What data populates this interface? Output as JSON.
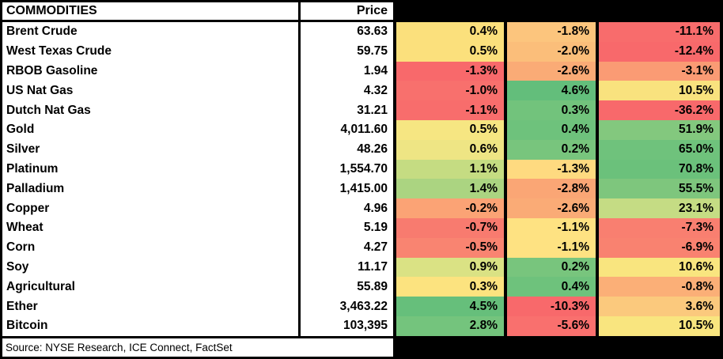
{
  "table": {
    "title": "COMMODITIES",
    "price_header": "Price",
    "pct_headers": [
      "",
      "",
      ""
    ],
    "source": "Source: NYSE Research, ICE Connect, FactSet",
    "heatmap_palette": {
      "low_red": "#F8696B",
      "mid_yellow": "#FFEB84",
      "high_green": "#63BE7B"
    },
    "rows": [
      {
        "name": "Brent Crude",
        "price": "63.63",
        "pct": [
          "0.4%",
          "-1.8%",
          "-11.1%"
        ],
        "colors": [
          "#FBE07C",
          "#FCC57D",
          "#F86C6C"
        ]
      },
      {
        "name": "West Texas Crude",
        "price": "59.75",
        "pct": [
          "0.5%",
          "-2.0%",
          "-12.4%"
        ],
        "colors": [
          "#FBE07C",
          "#FBBE7A",
          "#F8696B"
        ]
      },
      {
        "name": "RBOB Gasoline",
        "price": "1.94",
        "pct": [
          "-1.3%",
          "-2.6%",
          "-3.1%"
        ],
        "colors": [
          "#F8696B",
          "#FAAB76",
          "#FA9B74"
        ]
      },
      {
        "name": "US Nat Gas",
        "price": "4.32",
        "pct": [
          "-1.0%",
          "4.6%",
          "10.5%"
        ],
        "colors": [
          "#F8706D",
          "#63BE7B",
          "#F9E27E"
        ]
      },
      {
        "name": "Dutch Nat Gas",
        "price": "31.21",
        "pct": [
          "-1.1%",
          "0.3%",
          "-36.2%"
        ],
        "colors": [
          "#F86D6C",
          "#72C37C",
          "#F8696B"
        ]
      },
      {
        "name": "Gold",
        "price": "4,011.60",
        "pct": [
          "0.5%",
          "0.4%",
          "51.9%"
        ],
        "colors": [
          "#F6E682",
          "#6EC27C",
          "#83C87E"
        ]
      },
      {
        "name": "Silver",
        "price": "48.26",
        "pct": [
          "0.6%",
          "0.2%",
          "65.0%"
        ],
        "colors": [
          "#EEE584",
          "#78C57D",
          "#6FC27C"
        ]
      },
      {
        "name": "Platinum",
        "price": "1,554.70",
        "pct": [
          "1.1%",
          "-1.3%",
          "70.8%"
        ],
        "colors": [
          "#C5DC82",
          "#FEDA80",
          "#6BC17B"
        ]
      },
      {
        "name": "Palladium",
        "price": "1,415.00",
        "pct": [
          "1.4%",
          "-2.8%",
          "55.5%"
        ],
        "colors": [
          "#ABD481",
          "#FAA675",
          "#7EC67D"
        ]
      },
      {
        "name": "Copper",
        "price": "4.96",
        "pct": [
          "-0.2%",
          "-2.6%",
          "23.1%"
        ],
        "colors": [
          "#FBA375",
          "#FAAB76",
          "#C5DC84"
        ]
      },
      {
        "name": "Wheat",
        "price": "5.19",
        "pct": [
          "-0.7%",
          "-1.1%",
          "-7.3%"
        ],
        "colors": [
          "#F87B6F",
          "#FEE282",
          "#F97F70"
        ]
      },
      {
        "name": "Corn",
        "price": "4.27",
        "pct": [
          "-0.5%",
          "-1.1%",
          "-6.9%"
        ],
        "colors": [
          "#F98471",
          "#FEE282",
          "#F98270"
        ]
      },
      {
        "name": "Soy",
        "price": "11.17",
        "pct": [
          "0.9%",
          "0.2%",
          "10.6%"
        ],
        "colors": [
          "#DAE284",
          "#78C57D",
          "#F9E57F"
        ]
      },
      {
        "name": "Agricultural",
        "price": "55.89",
        "pct": [
          "0.3%",
          "0.4%",
          "-0.8%"
        ],
        "colors": [
          "#FCE37F",
          "#6EC27C",
          "#FBAF77"
        ]
      },
      {
        "name": "Ether",
        "price": "3,463.22",
        "pct": [
          "4.5%",
          "-10.3%",
          "3.6%"
        ],
        "colors": [
          "#66BF7B",
          "#F8696B",
          "#FBC97D"
        ]
      },
      {
        "name": "Bitcoin",
        "price": "103,395",
        "pct": [
          "2.8%",
          "-5.6%",
          "10.5%"
        ],
        "colors": [
          "#74C47D",
          "#F9706E",
          "#F9E57F"
        ]
      }
    ]
  },
  "chart_data": {
    "type": "table",
    "title": "COMMODITIES",
    "columns": [
      "Commodity",
      "Price",
      "",
      "",
      ""
    ],
    "rows": [
      [
        "Brent Crude",
        63.63,
        0.4,
        -1.8,
        -11.1
      ],
      [
        "West Texas Crude",
        59.75,
        0.5,
        -2.0,
        -12.4
      ],
      [
        "RBOB Gasoline",
        1.94,
        -1.3,
        -2.6,
        -3.1
      ],
      [
        "US Nat Gas",
        4.32,
        -1.0,
        4.6,
        10.5
      ],
      [
        "Dutch Nat Gas",
        31.21,
        -1.1,
        0.3,
        -36.2
      ],
      [
        "Gold",
        4011.6,
        0.5,
        0.4,
        51.9
      ],
      [
        "Silver",
        48.26,
        0.6,
        0.2,
        65.0
      ],
      [
        "Platinum",
        1554.7,
        1.1,
        -1.3,
        70.8
      ],
      [
        "Palladium",
        1415.0,
        1.4,
        -2.8,
        55.5
      ],
      [
        "Copper",
        4.96,
        -0.2,
        -2.6,
        23.1
      ],
      [
        "Wheat",
        5.19,
        -0.7,
        -1.1,
        -7.3
      ],
      [
        "Corn",
        4.27,
        -0.5,
        -1.1,
        -6.9
      ],
      [
        "Soy",
        11.17,
        0.9,
        0.2,
        10.6
      ],
      [
        "Agricultural",
        55.89,
        0.3,
        0.4,
        -0.8
      ],
      [
        "Ether",
        3463.22,
        4.5,
        -10.3,
        3.6
      ],
      [
        "Bitcoin",
        103395,
        2.8,
        -5.6,
        10.5
      ]
    ],
    "layout_hints": {
      "pct_columns_unlabeled_black_headers": true,
      "heatmap": "3-color scale red #F8696B / yellow #FFEB84 / green #63BE7B on the three % columns",
      "grid": "thick black borders between columns, no row gridlines"
    },
    "source": "Source: NYSE Research, ICE Connect, FactSet"
  }
}
